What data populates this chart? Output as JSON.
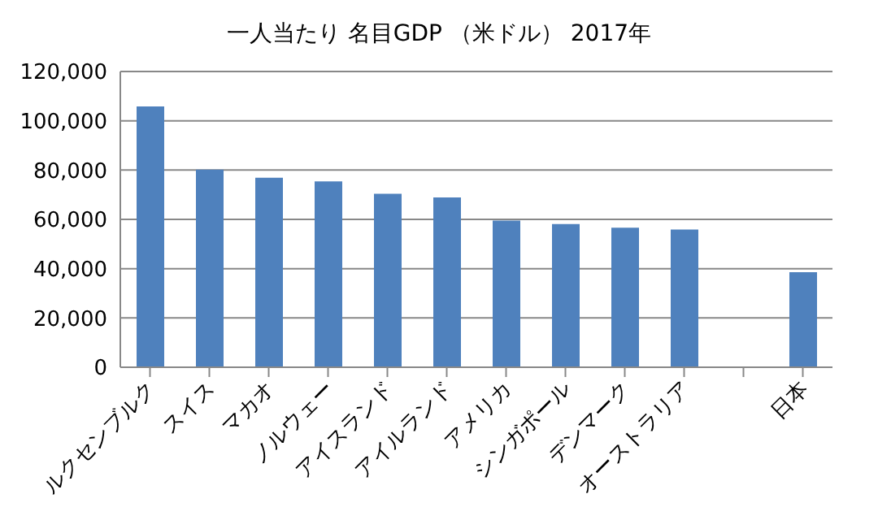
{
  "chart_data": {
    "type": "bar",
    "title": "一人当たり 名目GDP （米ドル） 2017年",
    "categories": [
      "ルクセンブルク",
      "スイス",
      "マカオ",
      "ノルウェー",
      "アイスランド",
      "アイルランド",
      "アメリカ",
      "シンガポール",
      "デンマーク",
      "オーストラリア",
      null,
      "日本"
    ],
    "values": [
      105800,
      80200,
      76900,
      75400,
      70400,
      68900,
      59500,
      58100,
      56600,
      55900,
      null,
      38600
    ],
    "color": "#4f81bd",
    "ylim": [
      0,
      120000
    ],
    "yticks": [
      0,
      {
        "value": 20000,
        "label": "20,000"
      },
      {
        "value": 40000,
        "label": "40,000"
      },
      {
        "value": 60000,
        "label": "60,000"
      },
      {
        "value": 80000,
        "label": "80,000"
      },
      {
        "value": 100000,
        "label": "100,000"
      },
      {
        "value": 120000,
        "label": "120,000"
      }
    ],
    "grid": "y",
    "legend": false
  }
}
